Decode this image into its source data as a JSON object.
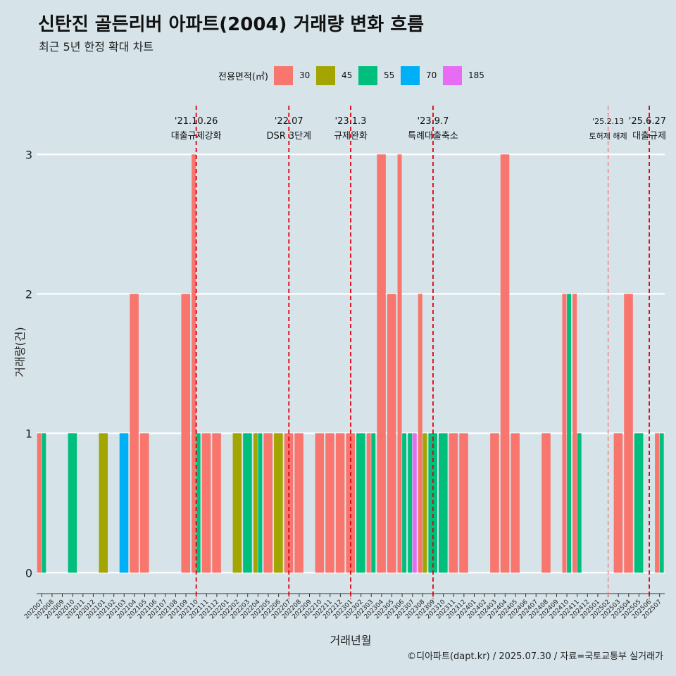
{
  "title": "신탄진 골든리버 아파트(2004) 거래량 변화 흐름",
  "subtitle": "최근 5년 한정 확대 차트",
  "caption": "©디아파트(dapt.kr) / 2025.07.30 / 자료=국토교통부 실거래가",
  "legend": {
    "title": "전용면적(㎡)",
    "items": [
      {
        "label": "30",
        "color": "#f8766d"
      },
      {
        "label": "45",
        "color": "#a3a500"
      },
      {
        "label": "55",
        "color": "#00bf7d"
      },
      {
        "label": "70",
        "color": "#00b0f6"
      },
      {
        "label": "185",
        "color": "#e76bf3"
      }
    ]
  },
  "chart_data": {
    "type": "bar",
    "title": "신탄진 골든리버 아파트(2004) 거래량 변화 흐름",
    "xlabel": "거래년월",
    "ylabel": "거래량(건)",
    "ylim": [
      -0.15,
      3.35
    ],
    "yticks": [
      0,
      1,
      2,
      3
    ],
    "categories": [
      "202007",
      "202008",
      "202009",
      "202010",
      "202011",
      "202012",
      "202101",
      "202102",
      "202103",
      "202104",
      "202105",
      "202106",
      "202107",
      "202108",
      "202109",
      "202110",
      "202111",
      "202112",
      "202201",
      "202202",
      "202203",
      "202204",
      "202205",
      "202206",
      "202207",
      "202208",
      "202209",
      "202210",
      "202211",
      "202212",
      "202301",
      "202302",
      "202303",
      "202304",
      "202305",
      "202306",
      "202307",
      "202308",
      "202309",
      "202310",
      "202311",
      "202312",
      "202401",
      "202402",
      "202403",
      "202404",
      "202405",
      "202406",
      "202407",
      "202408",
      "202409",
      "202410",
      "202411",
      "202412",
      "202501",
      "202502",
      "202503",
      "202504",
      "202505",
      "202506",
      "202507"
    ],
    "series": [
      {
        "name": "30",
        "color": "#f8766d",
        "values": [
          1,
          0,
          0,
          0,
          0,
          0,
          0,
          0,
          0,
          2,
          1,
          0,
          0,
          0,
          2,
          3,
          1,
          1,
          0,
          0,
          0,
          0,
          1,
          0,
          1,
          1,
          0,
          1,
          1,
          1,
          1,
          0,
          1,
          3,
          2,
          3,
          0,
          2,
          0,
          0,
          1,
          1,
          0,
          0,
          1,
          3,
          1,
          0,
          0,
          1,
          0,
          2,
          2,
          0,
          0,
          0,
          1,
          2,
          0,
          0,
          1
        ]
      },
      {
        "name": "45",
        "color": "#a3a500",
        "values": [
          0,
          0,
          0,
          0,
          0,
          0,
          1,
          0,
          0,
          0,
          0,
          0,
          0,
          0,
          0,
          0,
          0,
          0,
          0,
          1,
          0,
          1,
          0,
          1,
          0,
          0,
          0,
          0,
          0,
          0,
          0,
          0,
          0,
          0,
          0,
          0,
          0,
          1,
          0,
          0,
          0,
          0,
          0,
          0,
          0,
          0,
          0,
          0,
          0,
          0,
          0,
          0,
          0,
          0,
          0,
          0,
          0,
          0,
          0,
          0,
          0
        ]
      },
      {
        "name": "55",
        "color": "#00bf7d",
        "values": [
          1,
          0,
          0,
          1,
          0,
          0,
          0,
          0,
          0,
          0,
          0,
          0,
          0,
          0,
          0,
          1,
          0,
          0,
          0,
          0,
          1,
          1,
          0,
          0,
          0,
          0,
          0,
          0,
          0,
          0,
          0,
          1,
          1,
          0,
          0,
          1,
          1,
          0,
          1,
          1,
          0,
          0,
          0,
          0,
          0,
          0,
          0,
          0,
          0,
          0,
          0,
          2,
          1,
          0,
          0,
          0,
          0,
          0,
          1,
          0,
          1
        ]
      },
      {
        "name": "70",
        "color": "#00b0f6",
        "values": [
          0,
          0,
          0,
          0,
          0,
          0,
          0,
          0,
          1,
          0,
          0,
          0,
          0,
          0,
          0,
          0,
          0,
          0,
          0,
          0,
          0,
          0,
          0,
          0,
          0,
          0,
          0,
          0,
          0,
          0,
          0,
          0,
          0,
          0,
          0,
          0,
          0,
          0,
          0,
          0,
          0,
          0,
          0,
          0,
          0,
          0,
          0,
          0,
          0,
          0,
          0,
          0,
          0,
          0,
          0,
          0,
          0,
          0,
          0,
          0,
          0
        ]
      },
      {
        "name": "185",
        "color": "#e76bf3",
        "values": [
          0,
          0,
          0,
          0,
          0,
          0,
          0,
          0,
          0,
          0,
          0,
          0,
          0,
          0,
          0,
          0,
          0,
          0,
          0,
          0,
          0,
          0,
          0,
          0,
          0,
          0,
          0,
          0,
          0,
          0,
          0,
          0,
          0,
          0,
          0,
          0,
          1,
          0,
          0,
          0,
          0,
          0,
          0,
          0,
          0,
          0,
          0,
          0,
          0,
          0,
          0,
          0,
          0,
          0,
          0,
          0,
          0,
          0,
          0,
          0,
          0
        ]
      }
    ],
    "annotations": [
      {
        "date": "'21.10.26",
        "label": "대출규제강화",
        "x": "202110",
        "line": "dashed",
        "weight": "bold"
      },
      {
        "date": "'22.07",
        "label": "DSR 3단계",
        "x": "202207",
        "line": "dashed",
        "weight": "bold"
      },
      {
        "date": "'23.1.3",
        "label": "규제완화",
        "x": "202301",
        "line": "dashed",
        "weight": "bold"
      },
      {
        "date": "'23.9.7",
        "label": "특례대출축소",
        "x": "202309",
        "line": "dashed",
        "weight": "bold"
      },
      {
        "date": "'25.2.13",
        "label": "토허제 해제",
        "x": "202502",
        "line": "dashed",
        "weight": "light"
      },
      {
        "date": "'25.6.27",
        "label": "대출규제",
        "x": "202506",
        "line": "dashed",
        "weight": "bold"
      }
    ],
    "grid": true,
    "legend_position": "top"
  }
}
